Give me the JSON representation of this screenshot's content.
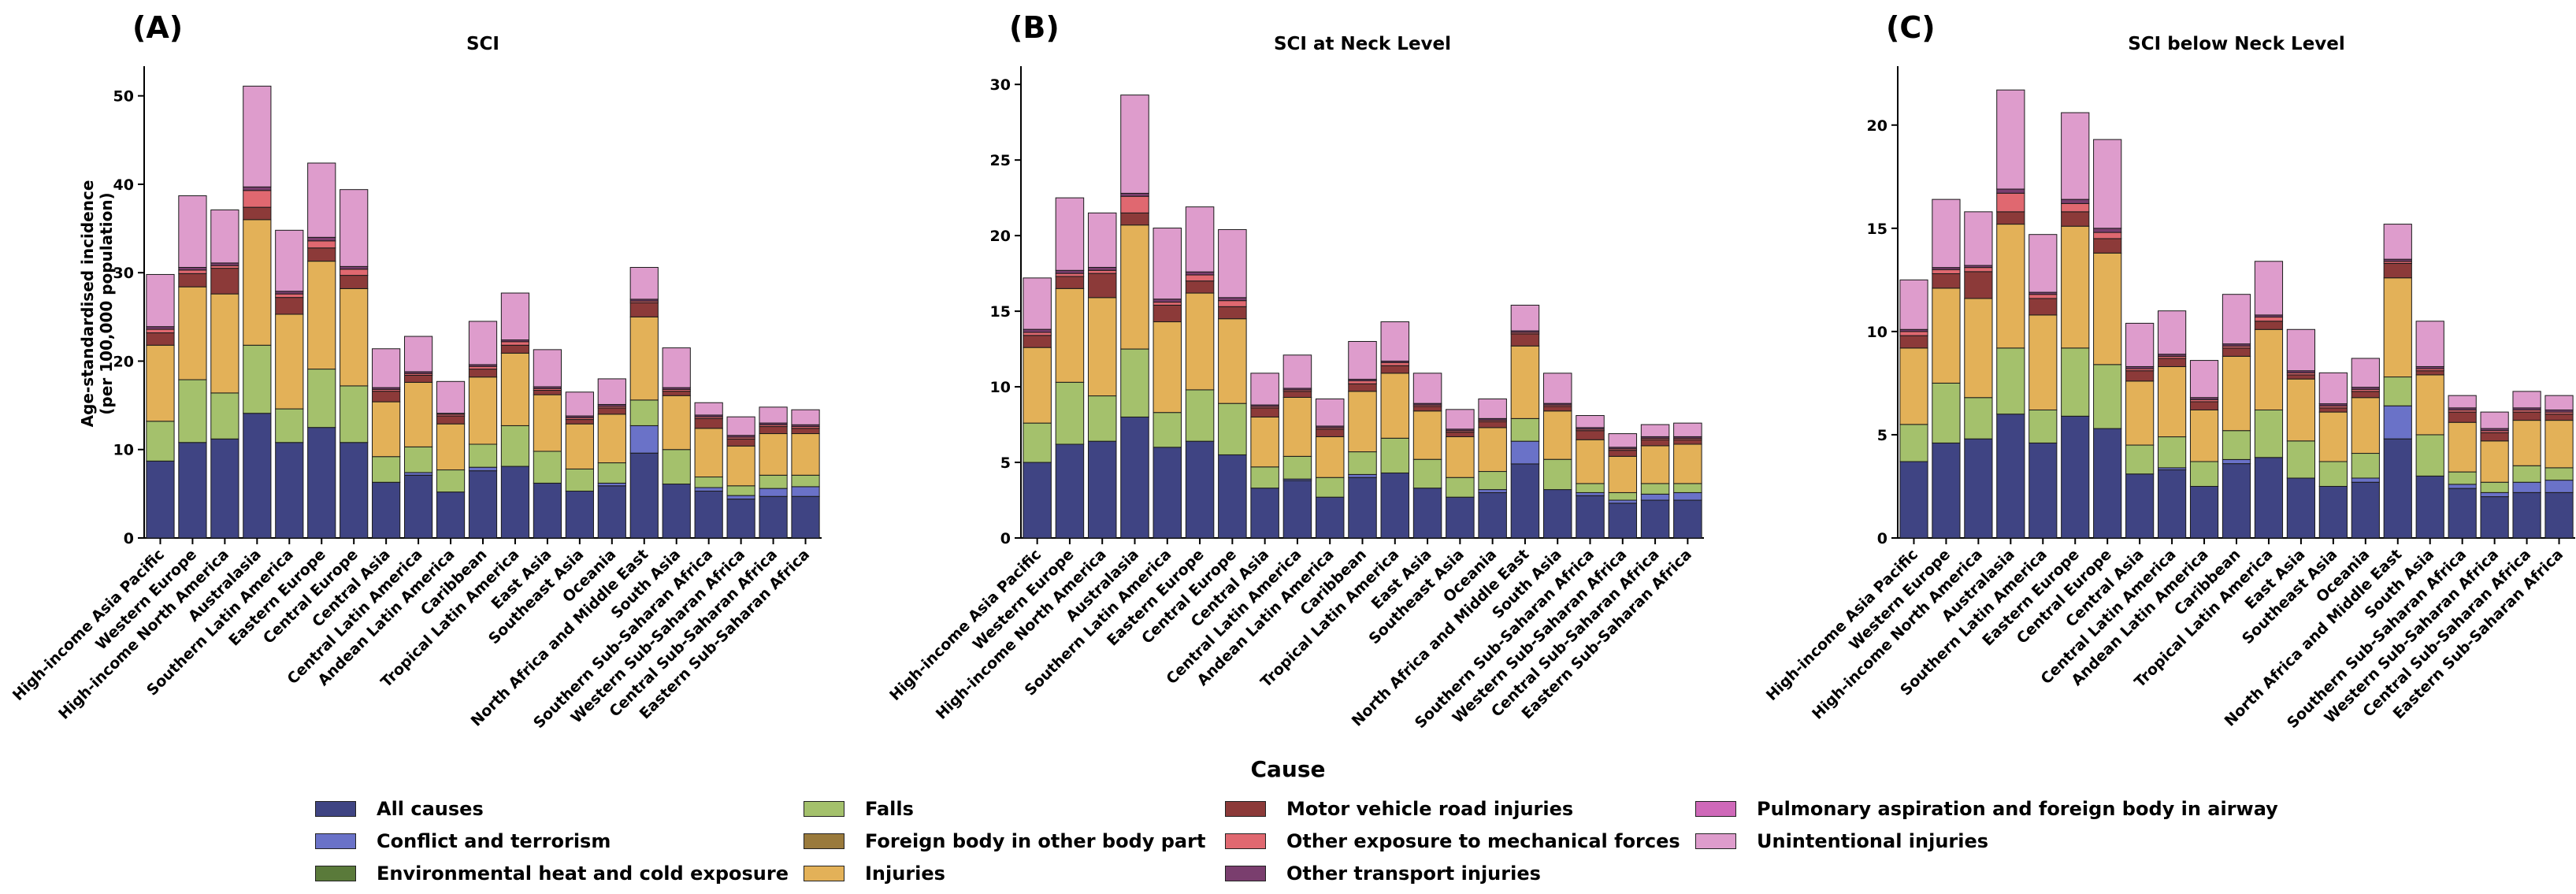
{
  "chart_data": [
    {
      "type": "bar",
      "stacked": true,
      "panel_label": "(A)",
      "title": "SCI",
      "xlabel": "",
      "ylabel": "Age-standardised incidence\n(per 100,000 population)",
      "ylim": [
        0,
        53
      ],
      "yticks": [
        0,
        10,
        20,
        30,
        40,
        50
      ],
      "categories": [
        "High-income Asia Pacific",
        "Western Europe",
        "High-income North America",
        "Australasia",
        "Southern Latin America",
        "Eastern Europe",
        "Central Europe",
        "Central Asia",
        "Central Latin America",
        "Andean Latin America",
        "Caribbean",
        "Tropical Latin America",
        "East Asia",
        "Southeast Asia",
        "Oceania",
        "North Africa and Middle East",
        "South Asia",
        "Southern Sub-Saharan Africa",
        "Western Sub-Saharan Africa",
        "Central Sub-Saharan Africa",
        "Eastern Sub-Saharan Africa"
      ],
      "series": [
        {
          "name": "All causes",
          "values": [
            8.7,
            10.8,
            11.2,
            14.1,
            10.8,
            12.5,
            10.8,
            6.3,
            7.1,
            5.2,
            7.6,
            8.1,
            6.2,
            5.3,
            5.9,
            9.6,
            6.1,
            5.3,
            4.4,
            4.7,
            4.7
          ]
        },
        {
          "name": "Conflict and terrorism",
          "values": [
            0,
            0,
            0,
            0,
            0,
            0,
            0,
            0,
            0.3,
            0,
            0.4,
            0,
            0,
            0,
            0.3,
            3.1,
            0,
            0.4,
            0.4,
            0.9,
            1.1
          ]
        },
        {
          "name": "Falls",
          "values": [
            4.5,
            7.1,
            5.2,
            7.7,
            3.8,
            6.6,
            6.4,
            2.9,
            2.9,
            2.5,
            2.6,
            4.6,
            3.6,
            2.5,
            2.3,
            2.9,
            3.9,
            1.2,
            1.1,
            1.5,
            1.3
          ]
        },
        {
          "name": "Injuries",
          "values": [
            8.6,
            10.5,
            11.2,
            14.2,
            10.7,
            12.2,
            11.0,
            6.2,
            7.3,
            5.2,
            7.6,
            8.2,
            6.4,
            5.1,
            5.5,
            9.4,
            6.1,
            5.5,
            4.5,
            4.7,
            4.7
          ]
        },
        {
          "name": "Motor vehicle road injuries",
          "values": [
            1.4,
            1.5,
            2.9,
            1.4,
            1.9,
            1.5,
            1.5,
            1.2,
            0.8,
            0.9,
            0.9,
            0.9,
            0.5,
            0.5,
            0.7,
            1.6,
            0.5,
            1.1,
            0.8,
            0.8,
            0.6
          ]
        },
        {
          "name": "Other exposure to mechanical forces",
          "values": [
            0.4,
            0.4,
            0.3,
            1.9,
            0.4,
            0.8,
            0.7,
            0.2,
            0.2,
            0.2,
            0.3,
            0.4,
            0.2,
            0.2,
            0.2,
            0.2,
            0.2,
            0.2,
            0.2,
            0.2,
            0.2
          ]
        },
        {
          "name": "Other transport injuries",
          "values": [
            0.3,
            0.3,
            0.3,
            0.4,
            0.3,
            0.4,
            0.3,
            0.2,
            0.2,
            0.1,
            0.2,
            0.2,
            0.2,
            0.2,
            0.2,
            0.2,
            0.2,
            0.2,
            0.2,
            0.2,
            0.2
          ]
        },
        {
          "name": "Unintentional injuries",
          "values": [
            5.9,
            8.1,
            6.0,
            11.4,
            6.9,
            8.4,
            8.7,
            4.4,
            4.0,
            3.6,
            4.9,
            5.3,
            4.2,
            2.7,
            2.9,
            3.6,
            4.5,
            1.4,
            2.1,
            1.8,
            1.7
          ]
        }
      ]
    },
    {
      "type": "bar",
      "stacked": true,
      "panel_label": "(B)",
      "title": "SCI at Neck Level",
      "xlabel": "",
      "ylabel": "",
      "ylim": [
        0,
        31
      ],
      "yticks": [
        0,
        5,
        10,
        15,
        20,
        25,
        30
      ],
      "categories": [
        "High-income Asia Pacific",
        "Western Europe",
        "High-income North America",
        "Australasia",
        "Southern Latin America",
        "Eastern Europe",
        "Central Europe",
        "Central Asia",
        "Central Latin America",
        "Andean Latin America",
        "Caribbean",
        "Tropical Latin America",
        "East Asia",
        "Southeast Asia",
        "Oceania",
        "North Africa and Middle East",
        "South Asia",
        "Southern Sub-Saharan Africa",
        "Western Sub-Saharan Africa",
        "Central Sub-Saharan Africa",
        "Eastern Sub-Saharan Africa"
      ],
      "series": [
        {
          "name": "All causes",
          "values": [
            5.0,
            6.2,
            6.4,
            8.0,
            6.0,
            6.4,
            5.5,
            3.3,
            3.8,
            2.7,
            4.0,
            4.3,
            3.3,
            2.7,
            3.0,
            4.9,
            3.2,
            2.8,
            2.3,
            2.5,
            2.5
          ]
        },
        {
          "name": "Conflict and terrorism",
          "values": [
            0,
            0,
            0,
            0,
            0,
            0,
            0,
            0,
            0.1,
            0,
            0.2,
            0,
            0,
            0,
            0.2,
            1.5,
            0,
            0.2,
            0.2,
            0.4,
            0.5
          ]
        },
        {
          "name": "Falls",
          "values": [
            2.6,
            4.1,
            3.0,
            4.5,
            2.3,
            3.4,
            3.4,
            1.4,
            1.5,
            1.3,
            1.5,
            2.3,
            1.9,
            1.3,
            1.2,
            1.5,
            2.0,
            0.6,
            0.5,
            0.7,
            0.6
          ]
        },
        {
          "name": "Injuries",
          "values": [
            5.0,
            6.2,
            6.5,
            8.2,
            6.0,
            6.4,
            5.6,
            3.3,
            3.9,
            2.7,
            4.0,
            4.3,
            3.2,
            2.7,
            2.9,
            4.8,
            3.2,
            2.9,
            2.4,
            2.5,
            2.6
          ]
        },
        {
          "name": "Motor vehicle road injuries",
          "values": [
            0.8,
            0.8,
            1.6,
            0.8,
            1.1,
            0.8,
            0.8,
            0.6,
            0.4,
            0.5,
            0.5,
            0.5,
            0.3,
            0.3,
            0.4,
            0.8,
            0.3,
            0.6,
            0.4,
            0.4,
            0.3
          ]
        },
        {
          "name": "Other exposure to mechanical forces",
          "values": [
            0.2,
            0.2,
            0.2,
            1.1,
            0.2,
            0.4,
            0.4,
            0.1,
            0.1,
            0.1,
            0.2,
            0.2,
            0.1,
            0.1,
            0.1,
            0.1,
            0.1,
            0.1,
            0.1,
            0.1,
            0.1
          ]
        },
        {
          "name": "Other transport injuries",
          "values": [
            0.2,
            0.2,
            0.2,
            0.2,
            0.2,
            0.2,
            0.2,
            0.1,
            0.1,
            0.1,
            0.1,
            0.1,
            0.1,
            0.1,
            0.1,
            0.1,
            0.1,
            0.1,
            0.1,
            0.1,
            0.1
          ]
        },
        {
          "name": "Unintentional injuries",
          "values": [
            3.4,
            4.8,
            3.6,
            6.5,
            4.7,
            4.3,
            4.5,
            2.1,
            2.2,
            1.8,
            2.5,
            2.6,
            2.0,
            1.3,
            1.3,
            1.7,
            2.0,
            0.8,
            0.9,
            0.8,
            0.9
          ]
        }
      ]
    },
    {
      "type": "bar",
      "stacked": true,
      "panel_label": "(C)",
      "title": "SCI below Neck Level",
      "xlabel": "",
      "ylabel": "",
      "ylim": [
        0,
        22.7
      ],
      "yticks": [
        0,
        5,
        10,
        15,
        20
      ],
      "categories": [
        "High-income Asia Pacific",
        "Western Europe",
        "High-income North America",
        "Australasia",
        "Southern Latin America",
        "Eastern Europe",
        "Central Europe",
        "Central Asia",
        "Central Latin America",
        "Andean Latin America",
        "Caribbean",
        "Tropical Latin America",
        "East Asia",
        "Southeast Asia",
        "Oceania",
        "North Africa and Middle East",
        "South Asia",
        "Southern Sub-Saharan Africa",
        "Western Sub-Saharan Africa",
        "Central Sub-Saharan Africa",
        "Eastern Sub-Saharan Africa"
      ],
      "series": [
        {
          "name": "All causes",
          "values": [
            3.7,
            4.6,
            4.8,
            6.0,
            4.6,
            5.9,
            5.3,
            3.1,
            3.3,
            2.5,
            3.6,
            3.9,
            2.9,
            2.5,
            2.7,
            4.8,
            3.0,
            2.4,
            2.0,
            2.2,
            2.2
          ]
        },
        {
          "name": "Conflict and terrorism",
          "values": [
            0,
            0,
            0,
            0,
            0,
            0,
            0,
            0,
            0.1,
            0,
            0.2,
            0,
            0,
            0,
            0.2,
            1.6,
            0,
            0.2,
            0.2,
            0.5,
            0.6
          ]
        },
        {
          "name": "Falls",
          "values": [
            1.8,
            2.9,
            2.0,
            3.2,
            1.6,
            3.3,
            3.1,
            1.4,
            1.5,
            1.2,
            1.4,
            2.3,
            1.8,
            1.2,
            1.2,
            1.4,
            2.0,
            0.6,
            0.5,
            0.8,
            0.6
          ]
        },
        {
          "name": "Injuries",
          "values": [
            3.7,
            4.6,
            4.8,
            6.0,
            4.6,
            5.9,
            5.4,
            3.1,
            3.4,
            2.5,
            3.6,
            3.9,
            3.0,
            2.4,
            2.7,
            4.8,
            2.9,
            2.4,
            2.0,
            2.2,
            2.3
          ]
        },
        {
          "name": "Motor vehicle road injuries",
          "values": [
            0.6,
            0.7,
            1.3,
            0.6,
            0.8,
            0.7,
            0.7,
            0.5,
            0.4,
            0.4,
            0.4,
            0.4,
            0.2,
            0.2,
            0.3,
            0.7,
            0.2,
            0.5,
            0.4,
            0.4,
            0.3
          ]
        },
        {
          "name": "Other exposure to mechanical forces",
          "values": [
            0.2,
            0.2,
            0.2,
            0.9,
            0.2,
            0.4,
            0.3,
            0.1,
            0.1,
            0.1,
            0.1,
            0.2,
            0.1,
            0.1,
            0.1,
            0.1,
            0.1,
            0.1,
            0.1,
            0.1,
            0.1
          ]
        },
        {
          "name": "Other transport injuries",
          "values": [
            0.1,
            0.1,
            0.1,
            0.2,
            0.1,
            0.2,
            0.2,
            0.1,
            0.1,
            0.1,
            0.1,
            0.1,
            0.1,
            0.1,
            0.1,
            0.1,
            0.1,
            0.1,
            0.1,
            0.1,
            0.1
          ]
        },
        {
          "name": "Unintentional injuries",
          "values": [
            2.4,
            3.3,
            2.6,
            4.8,
            2.8,
            4.2,
            4.3,
            2.1,
            2.1,
            1.8,
            2.4,
            2.6,
            2.0,
            1.5,
            1.4,
            1.7,
            2.2,
            0.6,
            0.8,
            0.8,
            0.7
          ]
        }
      ]
    }
  ],
  "legend": {
    "title": "Cause",
    "items": [
      {
        "label": "All causes",
        "color": "#3f4483"
      },
      {
        "label": "Conflict and terrorism",
        "color": "#6a72c8"
      },
      {
        "label": "Environmental heat and cold exposure",
        "color": "#5a7a3a"
      },
      {
        "label": "Falls",
        "color": "#a4c16c"
      },
      {
        "label": "Foreign body in other body part",
        "color": "#9a7a3c"
      },
      {
        "label": "Injuries",
        "color": "#e3b158"
      },
      {
        "label": "Motor vehicle road injuries",
        "color": "#8c3a39"
      },
      {
        "label": "Other exposure to mechanical forces",
        "color": "#e06870"
      },
      {
        "label": "Other transport injuries",
        "color": "#7a3e6e"
      },
      {
        "label": "Pulmonary aspiration and foreign body in airway",
        "color": "#cf69b9"
      },
      {
        "label": "Unintentional injuries",
        "color": "#de9ccc"
      }
    ]
  },
  "colors": {
    "All causes": "#3f4483",
    "Conflict and terrorism": "#6a72c8",
    "Falls": "#a4c16c",
    "Injuries": "#e3b158",
    "Motor vehicle road injuries": "#8c3a39",
    "Other exposure to mechanical forces": "#e06870",
    "Other transport injuries": "#7a3e6e",
    "Unintentional injuries": "#de9ccc"
  }
}
